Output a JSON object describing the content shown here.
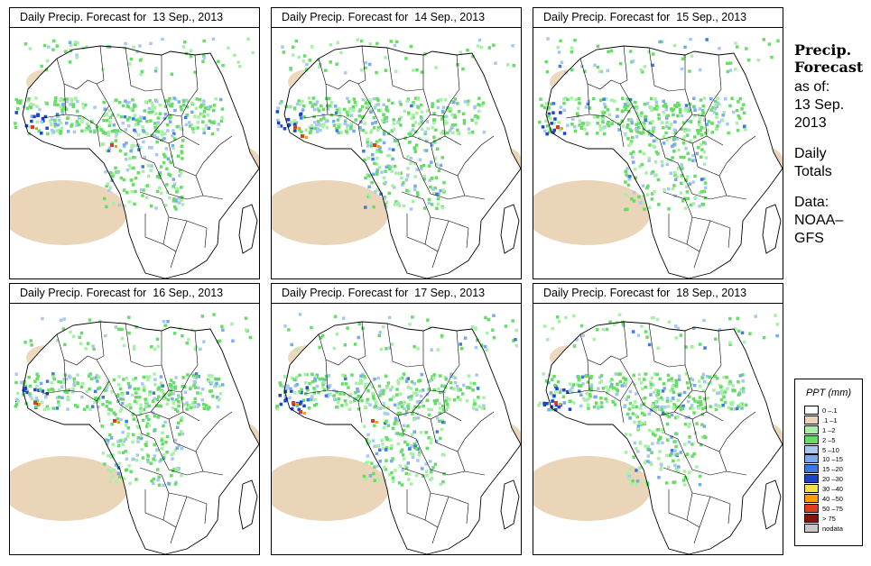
{
  "panels": [
    {
      "title": "Daily Precip. Forecast for  13 Sep., 2013"
    },
    {
      "title": "Daily Precip. Forecast for  14 Sep., 2013"
    },
    {
      "title": "Daily Precip. Forecast for  15 Sep., 2013"
    },
    {
      "title": "Daily Precip. Forecast for  16 Sep., 2013"
    },
    {
      "title": "Daily Precip. Forecast for  17 Sep., 2013"
    },
    {
      "title": "Daily Precip. Forecast for  18 Sep., 2013"
    }
  ],
  "side": {
    "title_line1": "Precip.",
    "title_line2": "Forecast",
    "line_asof": "as of:",
    "line_date": "13 Sep.",
    "line_year": "2013",
    "line_daily": "Daily",
    "line_totals": "Totals",
    "line_data": "Data:",
    "line_source1": "NOAA–",
    "line_source2": "GFS"
  },
  "legend": {
    "title": "PPT (mm)",
    "items": [
      {
        "label": "0 –.1",
        "color": "#ffffff"
      },
      {
        "label": ".1 –1",
        "color": "#ead5b8"
      },
      {
        "label": "1 –2",
        "color": "#a8f0a8"
      },
      {
        "label": "2 –5",
        "color": "#66dd66"
      },
      {
        "label": "5 –10",
        "color": "#a9c8f0"
      },
      {
        "label": "10 –15",
        "color": "#78a8ee"
      },
      {
        "label": "15 –20",
        "color": "#3d7ae0"
      },
      {
        "label": "20 –30",
        "color": "#1a44cc"
      },
      {
        "label": "30 –40",
        "color": "#f6dd4a"
      },
      {
        "label": "40 –50",
        "color": "#f5a000"
      },
      {
        "label": "50 –75",
        "color": "#e23a1a"
      },
      {
        "label": "> 75",
        "color": "#8a1010"
      },
      {
        "label": "nodata",
        "color": "#c8c8c8"
      }
    ]
  }
}
